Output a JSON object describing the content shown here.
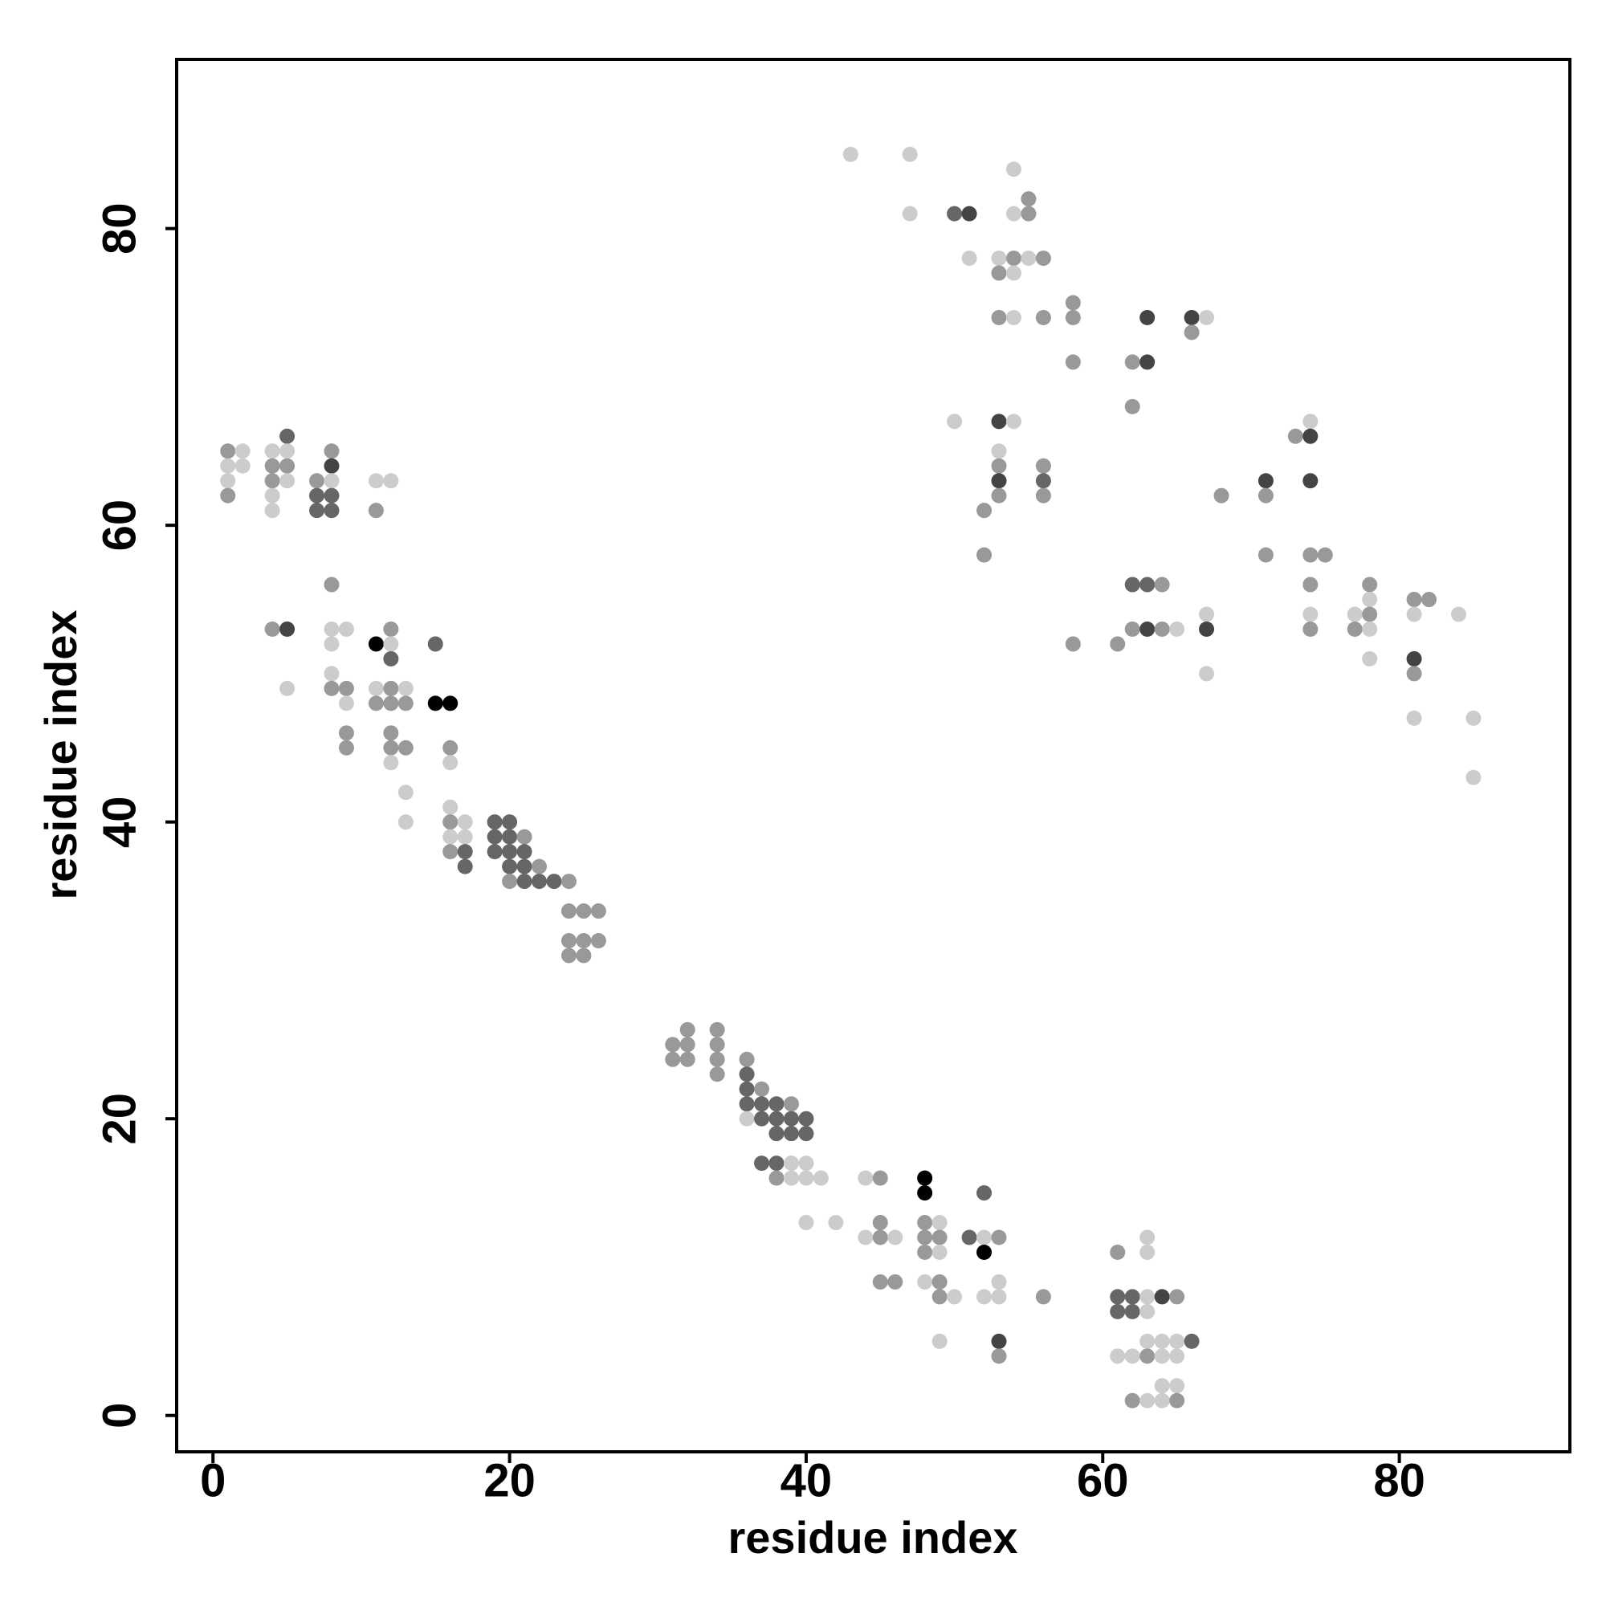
{
  "chart_data": {
    "type": "scatter",
    "xlabel": "residue index",
    "ylabel": "residue index",
    "xlim": [
      -2.45,
      91.5
    ],
    "ylim": [
      -2.45,
      91.4
    ],
    "xticks": [
      0,
      20,
      40,
      60,
      80
    ],
    "yticks": [
      0,
      20,
      40,
      60,
      80
    ],
    "x": [
      1,
      1,
      1,
      1,
      2,
      2,
      4,
      4,
      4,
      4,
      4,
      4,
      5,
      5,
      5,
      5,
      5,
      5,
      7,
      7,
      7,
      8,
      8,
      8,
      8,
      8,
      8,
      8,
      8,
      8,
      8,
      9,
      9,
      9,
      9,
      9,
      11,
      11,
      11,
      11,
      11,
      12,
      12,
      12,
      12,
      12,
      12,
      12,
      12,
      12,
      13,
      13,
      13,
      13,
      13,
      15,
      15,
      16,
      16,
      16,
      16,
      16,
      16,
      16,
      17,
      17,
      17,
      17,
      19,
      19,
      19,
      20,
      20,
      20,
      20,
      20,
      21,
      21,
      21,
      21,
      22,
      22,
      23,
      24,
      24,
      24,
      24,
      25,
      25,
      25,
      26,
      26,
      31,
      31,
      32,
      32,
      32,
      34,
      34,
      34,
      34,
      36,
      36,
      36,
      36,
      36,
      37,
      37,
      37,
      37,
      38,
      38,
      38,
      38,
      38,
      39,
      39,
      39,
      39,
      39,
      40,
      40,
      40,
      40,
      40,
      41,
      42,
      43,
      44,
      44,
      45,
      45,
      45,
      45,
      46,
      46,
      47,
      47,
      48,
      48,
      48,
      48,
      48,
      48,
      49,
      49,
      49,
      49,
      49,
      49,
      50,
      50,
      50,
      51,
      51,
      51,
      52,
      52,
      52,
      52,
      52,
      52,
      53,
      53,
      53,
      53,
      53,
      53,
      53,
      53,
      53,
      53,
      53,
      53,
      53,
      54,
      54,
      54,
      54,
      54,
      54,
      55,
      55,
      55,
      56,
      56,
      56,
      56,
      56,
      56,
      58,
      58,
      58,
      58,
      61,
      61,
      61,
      61,
      61,
      62,
      62,
      62,
      62,
      62,
      62,
      62,
      62,
      63,
      63,
      63,
      63,
      63,
      63,
      63,
      63,
      63,
      63,
      63,
      64,
      64,
      64,
      64,
      64,
      64,
      64,
      65,
      65,
      65,
      65,
      65,
      65,
      66,
      66,
      66,
      67,
      67,
      67,
      67,
      68,
      71,
      71,
      71,
      73,
      74,
      74,
      74,
      74,
      74,
      74,
      74,
      75,
      77,
      77,
      78,
      78,
      78,
      78,
      78,
      81,
      81,
      81,
      81,
      81,
      82,
      84,
      85,
      85
    ],
    "y": [
      65,
      64,
      63,
      62,
      65,
      64,
      65,
      64,
      63,
      62,
      61,
      53,
      66,
      65,
      64,
      63,
      53,
      49,
      63,
      62,
      61,
      65,
      64,
      63,
      62,
      61,
      56,
      53,
      52,
      50,
      49,
      53,
      49,
      48,
      46,
      45,
      63,
      61,
      52,
      49,
      48,
      63,
      53,
      52,
      51,
      49,
      48,
      46,
      45,
      44,
      49,
      48,
      45,
      42,
      40,
      52,
      48,
      48,
      45,
      44,
      41,
      40,
      39,
      38,
      40,
      39,
      38,
      37,
      40,
      39,
      38,
      40,
      39,
      38,
      37,
      36,
      39,
      38,
      37,
      36,
      37,
      36,
      36,
      36,
      34,
      32,
      31,
      34,
      32,
      31,
      34,
      32,
      25,
      24,
      26,
      25,
      24,
      26,
      25,
      24,
      23,
      24,
      23,
      22,
      21,
      20,
      22,
      21,
      20,
      17,
      21,
      20,
      19,
      17,
      16,
      21,
      20,
      19,
      17,
      16,
      20,
      19,
      17,
      16,
      13,
      16,
      13,
      85,
      16,
      12,
      16,
      13,
      12,
      9,
      12,
      9,
      85,
      81,
      16,
      15,
      13,
      12,
      11,
      9,
      13,
      12,
      11,
      9,
      8,
      5,
      81,
      67,
      8,
      81,
      78,
      12,
      61,
      58,
      15,
      12,
      11,
      8,
      78,
      77,
      74,
      67,
      65,
      64,
      63,
      62,
      12,
      9,
      8,
      5,
      4,
      84,
      81,
      78,
      77,
      74,
      67,
      82,
      81,
      78,
      78,
      74,
      64,
      63,
      62,
      8,
      75,
      74,
      71,
      52,
      52,
      11,
      8,
      7,
      4,
      71,
      68,
      56,
      53,
      8,
      7,
      4,
      1,
      74,
      71,
      56,
      53,
      12,
      11,
      8,
      7,
      5,
      4,
      1,
      56,
      53,
      8,
      5,
      4,
      2,
      1,
      53,
      8,
      5,
      4,
      2,
      1,
      74,
      73,
      5,
      74,
      54,
      53,
      50,
      62,
      63,
      62,
      58,
      66,
      67,
      66,
      63,
      58,
      56,
      54,
      53,
      58,
      54,
      53,
      56,
      55,
      54,
      53,
      51,
      55,
      54,
      51,
      50,
      47,
      55,
      54,
      47,
      43
    ],
    "colors": [
      "#999",
      "#ccc",
      "#ccc",
      "#999",
      "#ccc",
      "#ccc",
      "#ccc",
      "#999",
      "#999",
      "#ccc",
      "#ccc",
      "#999",
      "#666",
      "#ccc",
      "#999",
      "#ccc",
      "#444",
      "#ccc",
      "#999",
      "#666",
      "#666",
      "#999",
      "#444",
      "#ccc",
      "#666",
      "#666",
      "#999",
      "#ccc",
      "#ccc",
      "#ccc",
      "#999",
      "#ccc",
      "#999",
      "#ccc",
      "#999",
      "#999",
      "#ccc",
      "#999",
      "#000",
      "#ccc",
      "#999",
      "#ccc",
      "#999",
      "#ccc",
      "#666",
      "#999",
      "#999",
      "#999",
      "#999",
      "#ccc",
      "#ccc",
      "#999",
      "#999",
      "#ccc",
      "#ccc",
      "#666",
      "#000",
      "#000",
      "#999",
      "#ccc",
      "#ccc",
      "#999",
      "#ccc",
      "#999",
      "#ccc",
      "#ccc",
      "#666",
      "#666",
      "#666",
      "#666",
      "#666",
      "#666",
      "#666",
      "#666",
      "#666",
      "#999",
      "#999",
      "#666",
      "#666",
      "#666",
      "#999",
      "#666",
      "#666",
      "#999",
      "#999",
      "#999",
      "#999",
      "#999",
      "#999",
      "#999",
      "#999",
      "#999",
      "#999",
      "#999",
      "#999",
      "#999",
      "#999",
      "#999",
      "#999",
      "#999",
      "#999",
      "#999",
      "#666",
      "#666",
      "#666",
      "#ccc",
      "#999",
      "#666",
      "#666",
      "#666",
      "#666",
      "#666",
      "#666",
      "#666",
      "#999",
      "#999",
      "#666",
      "#666",
      "#ccc",
      "#ccc",
      "#666",
      "#666",
      "#ccc",
      "#ccc",
      "#ccc",
      "#ccc",
      "#ccc",
      "#ccc",
      "#ccc",
      "#ccc",
      "#999",
      "#999",
      "#999",
      "#999",
      "#ccc",
      "#999",
      "#ccc",
      "#ccc",
      "#000",
      "#000",
      "#999",
      "#999",
      "#999",
      "#ccc",
      "#ccc",
      "#999",
      "#ccc",
      "#999",
      "#999",
      "#ccc",
      "#666",
      "#ccc",
      "#ccc",
      "#444",
      "#ccc",
      "#666",
      "#999",
      "#999",
      "#666",
      "#ccc",
      "#000",
      "#ccc",
      "#ccc",
      "#999",
      "#999",
      "#444",
      "#ccc",
      "#999",
      "#444",
      "#999",
      "#999",
      "#ccc",
      "#ccc",
      "#444",
      "#999",
      "#ccc",
      "#ccc",
      "#999",
      "#ccc",
      "#ccc",
      "#ccc",
      "#999",
      "#999",
      "#ccc",
      "#999",
      "#999",
      "#999",
      "#666",
      "#999",
      "#999",
      "#999",
      "#999",
      "#999",
      "#999",
      "#999",
      "#999",
      "#666",
      "#666",
      "#ccc",
      "#999",
      "#999",
      "#666",
      "#999",
      "#666",
      "#666",
      "#ccc",
      "#999",
      "#444",
      "#444",
      "#666",
      "#444",
      "#ccc",
      "#ccc",
      "#ccc",
      "#ccc",
      "#ccc",
      "#999",
      "#ccc",
      "#999",
      "#999",
      "#444",
      "#ccc",
      "#ccc",
      "#ccc",
      "#ccc",
      "#ccc",
      "#999",
      "#ccc",
      "#ccc",
      "#ccc",
      "#999",
      "#444",
      "#999",
      "#666",
      "#ccc",
      "#ccc",
      "#444",
      "#ccc",
      "#999",
      "#444",
      "#999",
      "#999",
      "#999",
      "#ccc",
      "#444",
      "#444",
      "#999",
      "#999",
      "#ccc",
      "#999",
      "#999",
      "#ccc",
      "#999",
      "#999",
      "#ccc",
      "#999",
      "#ccc",
      "#ccc",
      "#999",
      "#ccc",
      "#444",
      "#999",
      "#ccc",
      "#999",
      "#ccc",
      "#ccc",
      "#ccc"
    ]
  }
}
